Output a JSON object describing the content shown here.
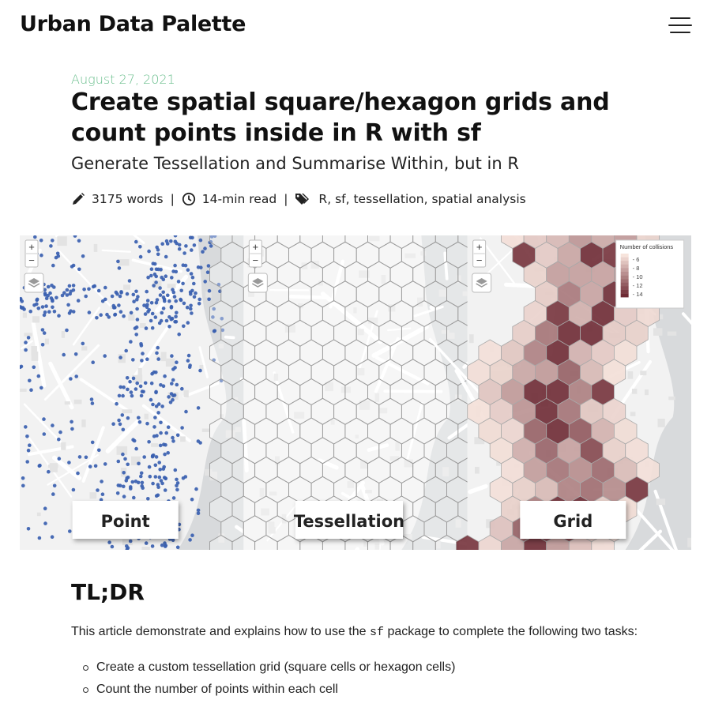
{
  "site": {
    "title": "Urban Data Palette",
    "menu_icon": "hamburger-menu-icon"
  },
  "post": {
    "date": "August 27, 2021",
    "title": "Create spatial square/hexagon grids and count points inside in R with sf",
    "subtitle": "Generate Tessellation and Summarise Within, but in R",
    "meta": {
      "words": "3175 words",
      "read_time": "14-min read",
      "tags": [
        "R",
        "sf",
        "tessellation",
        "spatial analysis"
      ],
      "separator": "|"
    }
  },
  "hero": {
    "panels": [
      {
        "label": "Point",
        "zoom_in": "+",
        "zoom_out": "−"
      },
      {
        "label": "Tessellation",
        "zoom_in": "+",
        "zoom_out": "−"
      },
      {
        "label": "Grid",
        "zoom_in": "+",
        "zoom_out": "−"
      }
    ],
    "legend": {
      "title": "Number of collisions",
      "ticks": [
        "6",
        "8",
        "10",
        "12",
        "14"
      ]
    },
    "colors": {
      "points": "#3a5fb0",
      "hex_stroke": "#9a9a9a",
      "heat_low": "#f7e4dc",
      "heat_high": "#6e2a34"
    }
  },
  "content": {
    "heading": "TL;DR",
    "intro_before": "This article demonstrate and explains how to use the ",
    "intro_code": "sf",
    "intro_after": " package to complete the following two tasks:",
    "tasks": [
      "Create a custom tessellation grid (square cells or hexagon cells)",
      "Count the number of points within each cell"
    ]
  }
}
